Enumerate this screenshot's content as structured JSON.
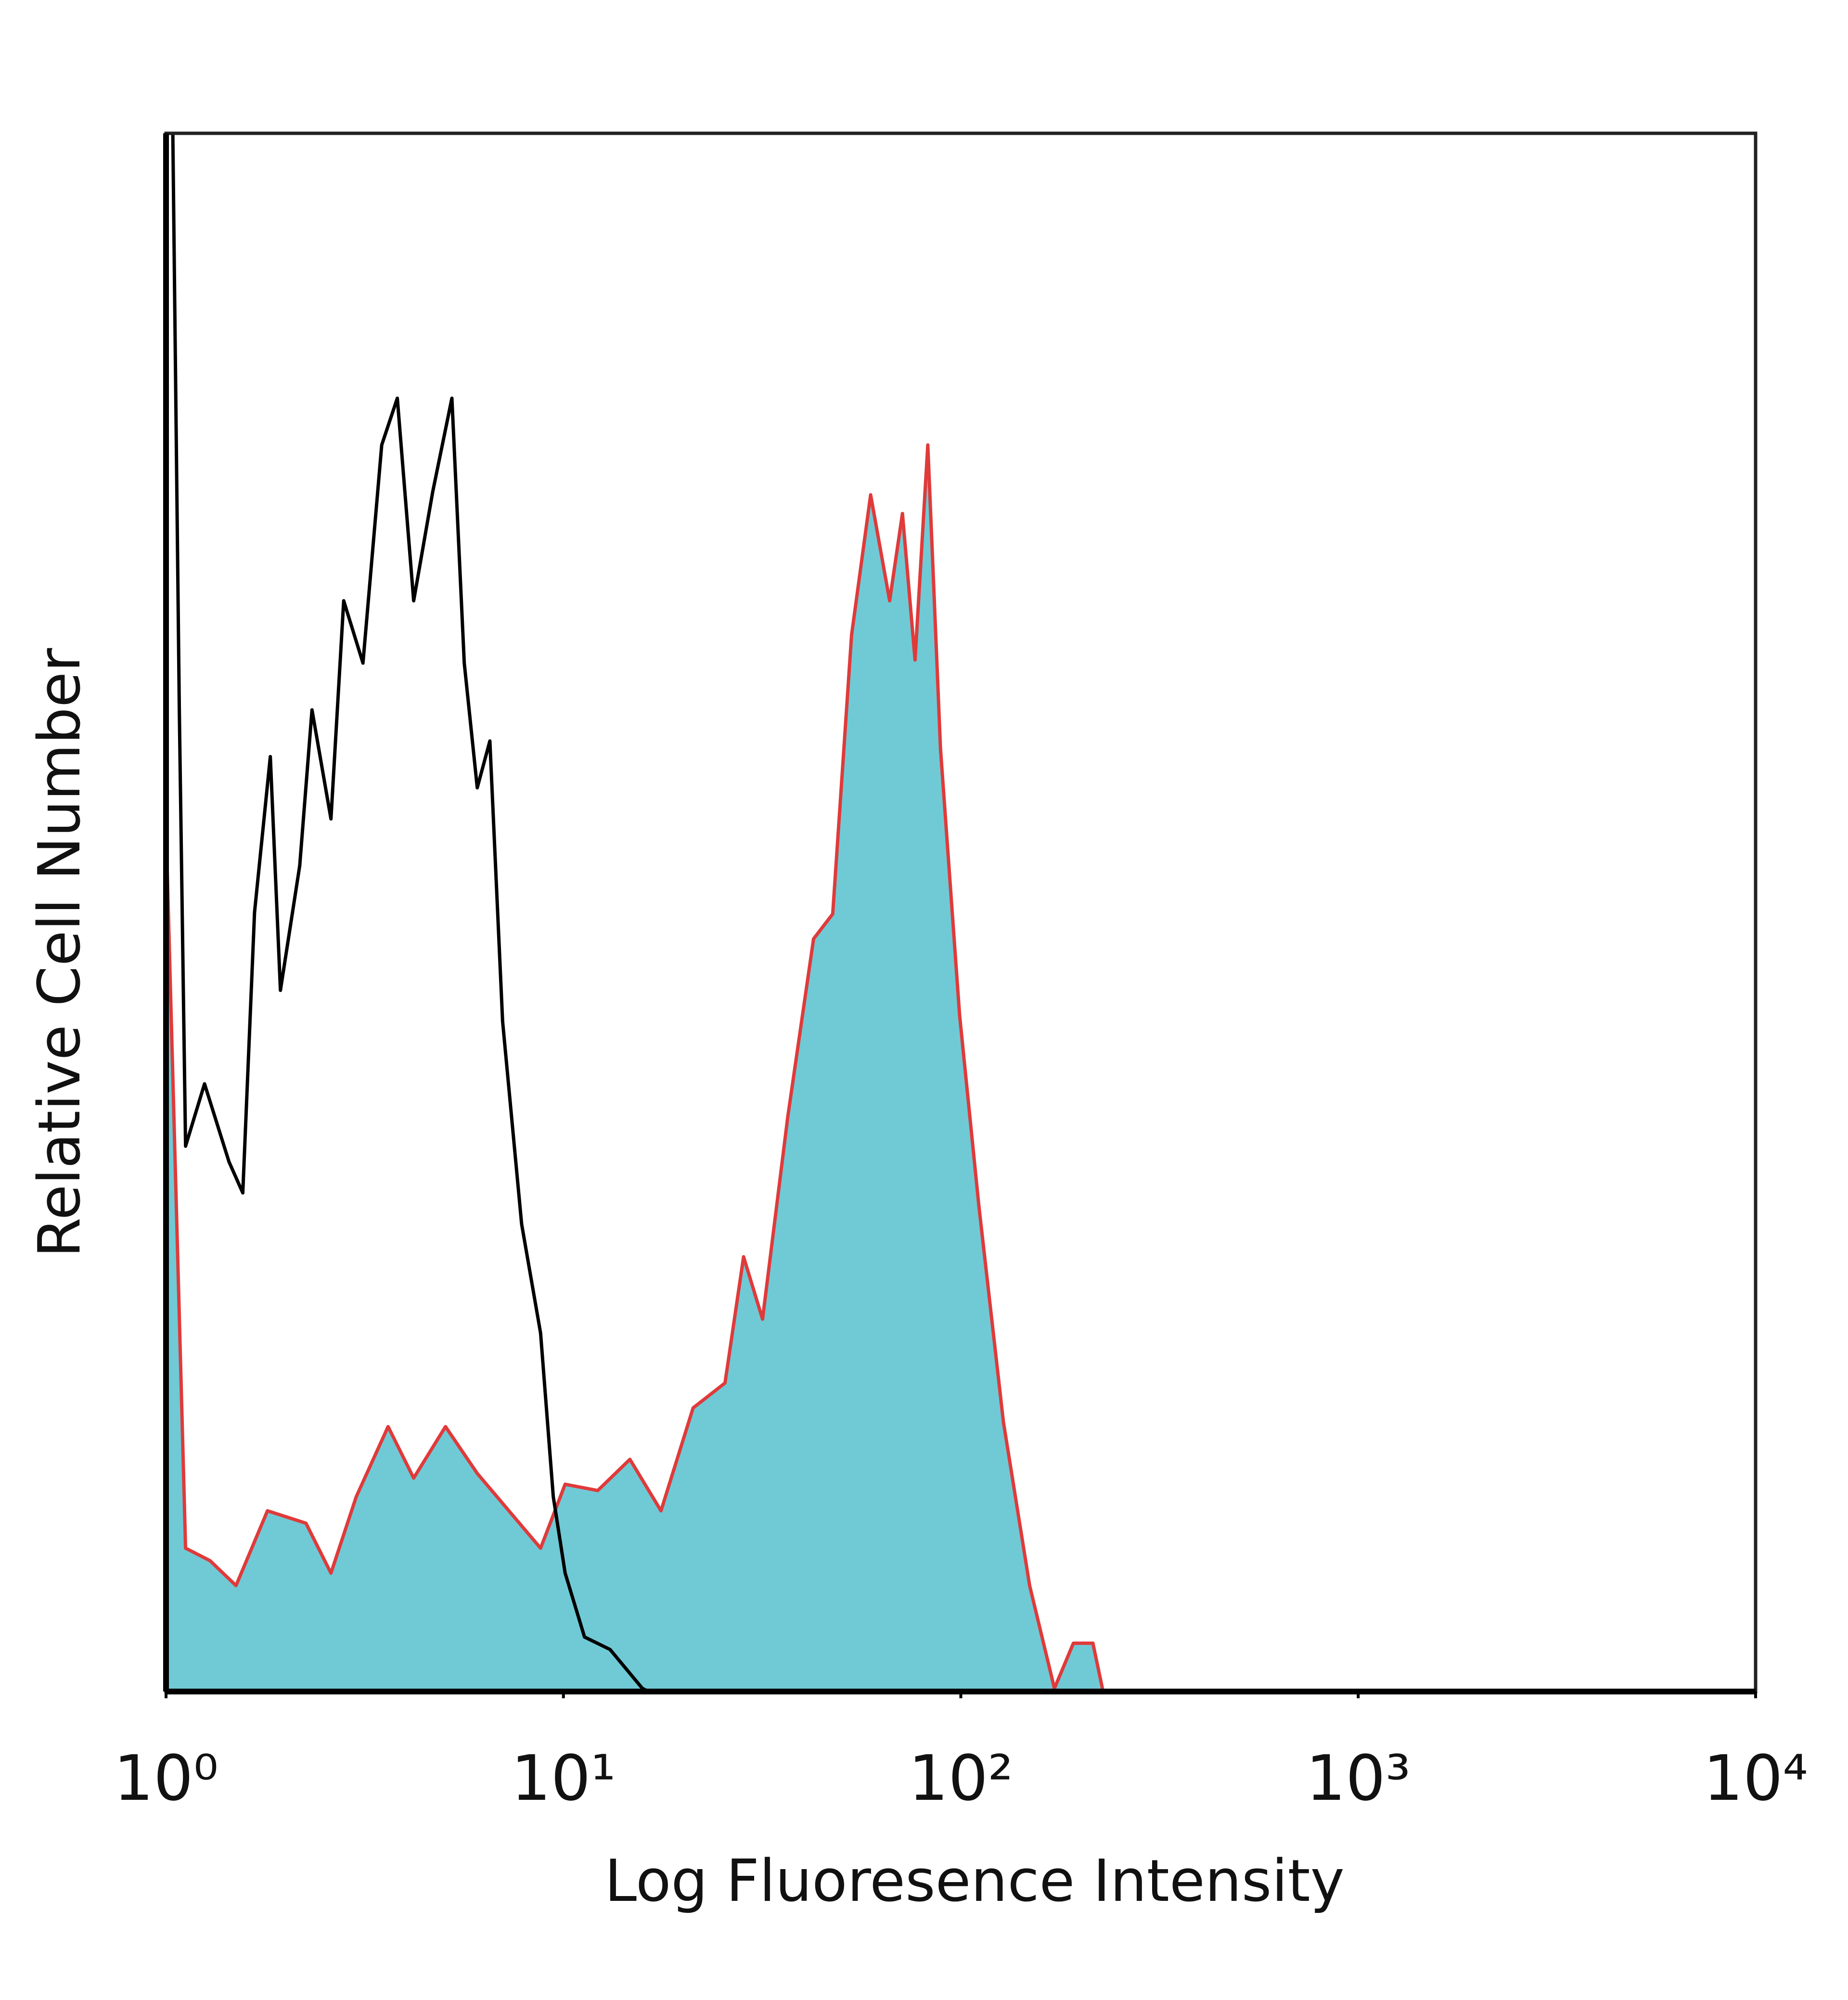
{
  "chart_data": {
    "type": "histogram-overlay",
    "xlabel": "Log Fluoresence Intensity",
    "ylabel": "Relative Cell Number",
    "xscale": "log",
    "xlim": [
      1,
      10000
    ],
    "ylim": [
      0,
      100
    ],
    "xticks": [
      {
        "value": 1,
        "label": "10⁰"
      },
      {
        "value": 10,
        "label": "10¹"
      },
      {
        "value": 100,
        "label": "10²"
      },
      {
        "value": 1000,
        "label": "10³"
      },
      {
        "value": 10000,
        "label": "10⁴"
      }
    ],
    "series": [
      {
        "color": "#e03a3a",
        "fill": "#6fcad6",
        "x": [
          1,
          1.12,
          1.29,
          1.5,
          1.8,
          2.25,
          2.6,
          3.01,
          3.62,
          4.2,
          5.05,
          6.07,
          7.29,
          8.76,
          10.1,
          12.2,
          14.7,
          17.6,
          21.2,
          25.5,
          28.4,
          31.7,
          36.7,
          42.6,
          47.6,
          53.1,
          59.3,
          66.2,
          71.3,
          76.7,
          82.6,
          88.9,
          99.3,
          111,
          128,
          149,
          172,
          192,
          215,
          228
        ],
        "values": [
          55.6,
          9.2,
          8.4,
          6.8,
          11.6,
          10.8,
          7.6,
          12.5,
          17,
          13.7,
          17,
          14,
          11.6,
          9.2,
          13.3,
          12.9,
          14.9,
          11.6,
          18.2,
          19.8,
          27.9,
          23.9,
          36.9,
          48.3,
          49.9,
          67.8,
          76.8,
          70,
          75.6,
          66.2,
          80,
          60.5,
          43.4,
          31.2,
          17.3,
          6.8,
          0.2,
          3.1,
          3.1,
          0
        ]
      },
      {
        "color": "#000000",
        "x": [
          1,
          1.04,
          1.08,
          1.12,
          1.25,
          1.44,
          1.56,
          1.67,
          1.83,
          1.94,
          2.17,
          2.33,
          2.6,
          2.8,
          3.13,
          3.49,
          3.82,
          4.2,
          4.69,
          5.24,
          5.63,
          6.07,
          6.53,
          7.03,
          7.85,
          8.76,
          9.43,
          10.1,
          11.3,
          13.1,
          15.8,
          16.4
        ],
        "values": [
          100,
          100,
          63,
          35,
          39,
          34,
          32,
          50,
          60,
          45,
          53,
          63,
          56,
          70,
          66,
          80,
          83,
          70,
          77,
          83,
          66,
          58,
          61,
          43,
          30,
          23,
          12.5,
          7.6,
          3.5,
          2.7,
          0.2,
          0
        ]
      }
    ]
  }
}
